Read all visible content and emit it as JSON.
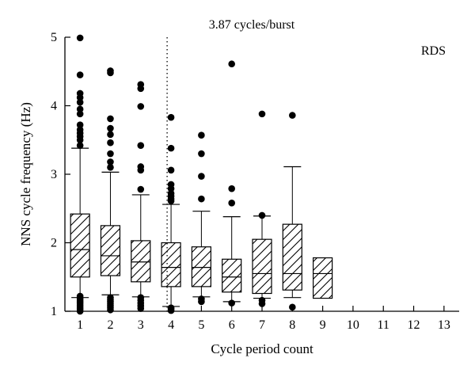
{
  "chart_data": {
    "type": "box",
    "annotation": "3.87 cycles/burst",
    "panel_label": "RDS",
    "xlabel": "Cycle period count",
    "ylabel": "NNS cycle frequency (Hz)",
    "xlim": [
      0.5,
      13.5
    ],
    "ylim": [
      1,
      5
    ],
    "x_ticks": [
      "1",
      "2",
      "3",
      "4",
      "5",
      "6",
      "7",
      "8",
      "9",
      "10",
      "11",
      "12",
      "13"
    ],
    "y_ticks": [
      "1",
      "2",
      "3",
      "4",
      "5"
    ],
    "reference_line_x": 3.87,
    "boxes": [
      {
        "x": 1,
        "q1": 1.5,
        "median": 1.9,
        "q3": 2.42,
        "whisker_low": 1.2,
        "whisker_high": 3.38,
        "outliers": [
          4.99,
          4.45,
          4.18,
          4.12,
          4.05,
          3.95,
          3.88,
          3.72,
          3.65,
          3.6,
          3.55,
          3.5,
          3.42,
          1.22,
          1.18,
          1.15,
          1.12,
          1.09,
          1.06,
          1.03,
          1.0
        ]
      },
      {
        "x": 2,
        "q1": 1.52,
        "median": 1.81,
        "q3": 2.25,
        "whisker_low": 1.24,
        "whisker_high": 3.03,
        "outliers": [
          4.51,
          4.48,
          3.81,
          3.67,
          3.58,
          3.46,
          3.3,
          3.18,
          3.1,
          1.2,
          1.17,
          1.14,
          1.11,
          1.08,
          1.05,
          1.02
        ]
      },
      {
        "x": 3,
        "q1": 1.43,
        "median": 1.72,
        "q3": 2.03,
        "whisker_low": 1.21,
        "whisker_high": 2.7,
        "outliers": [
          4.31,
          4.25,
          3.99,
          3.42,
          3.11,
          3.06,
          2.78,
          1.2,
          1.16,
          1.12,
          1.08,
          1.04
        ]
      },
      {
        "x": 4,
        "q1": 1.36,
        "median": 1.64,
        "q3": 2.0,
        "whisker_low": 1.07,
        "whisker_high": 2.56,
        "outliers": [
          3.83,
          3.38,
          3.06,
          2.85,
          2.79,
          2.72,
          2.68,
          2.64,
          2.61,
          1.05,
          1.03,
          1.01
        ]
      },
      {
        "x": 5,
        "q1": 1.36,
        "median": 1.64,
        "q3": 1.94,
        "whisker_low": 1.21,
        "whisker_high": 2.46,
        "outliers": [
          3.57,
          3.3,
          2.97,
          2.64,
          1.18,
          1.14
        ]
      },
      {
        "x": 6,
        "q1": 1.28,
        "median": 1.5,
        "q3": 1.76,
        "whisker_low": 1.14,
        "whisker_high": 2.38,
        "outliers": [
          4.61,
          2.79,
          2.58,
          1.12
        ]
      },
      {
        "x": 7,
        "q1": 1.26,
        "median": 1.55,
        "q3": 2.05,
        "whisker_low": 1.19,
        "whisker_high": 2.39,
        "outliers": [
          3.88,
          2.4,
          1.16,
          1.11
        ]
      },
      {
        "x": 8,
        "q1": 1.31,
        "median": 1.55,
        "q3": 2.27,
        "whisker_low": 1.2,
        "whisker_high": 3.11,
        "outliers": [
          3.86,
          1.06
        ]
      },
      {
        "x": 9,
        "q1": 1.19,
        "median": 1.55,
        "q3": 1.78,
        "whisker_low": null,
        "whisker_high": null,
        "outliers": []
      }
    ],
    "grid": false,
    "legend": "none"
  }
}
